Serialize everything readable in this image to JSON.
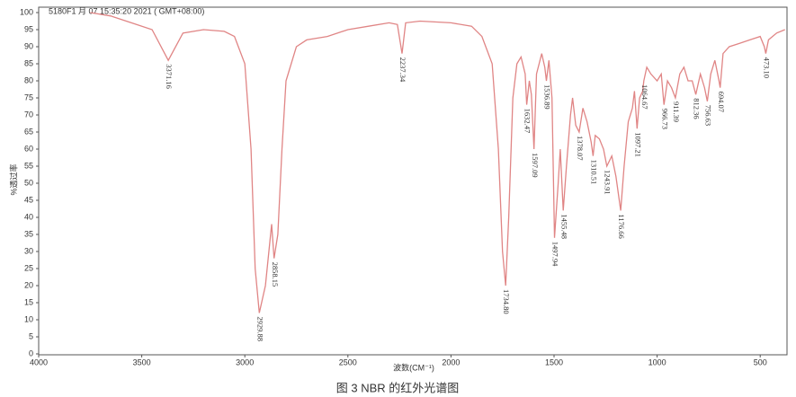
{
  "chart_data": {
    "type": "line",
    "header": "5180F1 月 07 15:35:20 2021 ( GMT+08:00)",
    "ylabel": "%透过率",
    "xlabel": "波数(CM⁻¹)",
    "caption": "图 3  NBR 的红外光谱图",
    "xlim": [
      4000,
      370
    ],
    "ylim": [
      0,
      100
    ],
    "xticks": [
      4000,
      3500,
      3000,
      2500,
      2000,
      1500,
      1000,
      500
    ],
    "yticks": [
      0,
      5,
      10,
      15,
      20,
      25,
      30,
      35,
      40,
      45,
      50,
      55,
      60,
      65,
      70,
      75,
      80,
      85,
      90,
      95,
      100
    ],
    "series": [
      {
        "color": "#e08585",
        "x": [
          3750,
          3650,
          3550,
          3450,
          3371.16,
          3300,
          3200,
          3100,
          3050,
          3000,
          2970,
          2950,
          2929.88,
          2900,
          2880,
          2870,
          2858.15,
          2840,
          2820,
          2800,
          2750,
          2700,
          2600,
          2500,
          2400,
          2300,
          2260,
          2237.34,
          2220,
          2150,
          2000,
          1900,
          1850,
          1800,
          1770,
          1750,
          1734.8,
          1720,
          1700,
          1680,
          1660,
          1640,
          1632.47,
          1620,
          1610,
          1597.09,
          1585,
          1560,
          1545,
          1536.89,
          1525,
          1510,
          1497.94,
          1480,
          1470,
          1455.48,
          1440,
          1420,
          1410,
          1395,
          1378.07,
          1360,
          1340,
          1320,
          1310.51,
          1300,
          1280,
          1260,
          1243.91,
          1220,
          1200,
          1176.66,
          1160,
          1140,
          1120,
          1110,
          1097.21,
          1085,
          1070,
          1064.67,
          1050,
          1030,
          1000,
          980,
          966.73,
          950,
          930,
          911.39,
          890,
          870,
          850,
          830,
          812.36,
          790,
          770,
          756.63,
          740,
          720,
          700,
          694.07,
          680,
          650,
          600,
          550,
          500,
          480,
          473.1,
          460,
          420,
          380
        ],
        "values": [
          100,
          99,
          97,
          95,
          86,
          94,
          95,
          94.5,
          93,
          85,
          60,
          25,
          12,
          20,
          32,
          38,
          28,
          35,
          60,
          80,
          90,
          92,
          93,
          95,
          96,
          97,
          96.5,
          88,
          97,
          97.5,
          97,
          96,
          93,
          85,
          60,
          30,
          20,
          40,
          75,
          85,
          87,
          82,
          73,
          80,
          76,
          60,
          82,
          88,
          84,
          80,
          86,
          75,
          34,
          50,
          60,
          42,
          55,
          70,
          75,
          67,
          65,
          72,
          68,
          62,
          58,
          64,
          63,
          60,
          55,
          58,
          52,
          42,
          55,
          68,
          72,
          77,
          66,
          75,
          77,
          80,
          84,
          82,
          80,
          82,
          73,
          80,
          78,
          75,
          82,
          84,
          80,
          80,
          76,
          82,
          78,
          74,
          82,
          86,
          80,
          78,
          88,
          90,
          91,
          92,
          93,
          90,
          88,
          92,
          94,
          95
        ]
      }
    ],
    "peaks": [
      {
        "label": "3371.16",
        "x": 3371.16,
        "y": 86
      },
      {
        "label": "2929.88",
        "x": 2929.88,
        "y": 12
      },
      {
        "label": "2858.15",
        "x": 2858.15,
        "y": 28
      },
      {
        "label": "2237.34",
        "x": 2237.34,
        "y": 88
      },
      {
        "label": "1734.80",
        "x": 1734.8,
        "y": 20
      },
      {
        "label": "1632.47",
        "x": 1632.47,
        "y": 73
      },
      {
        "label": "1597.09",
        "x": 1597.09,
        "y": 60
      },
      {
        "label": "1536.89",
        "x": 1536.89,
        "y": 80
      },
      {
        "label": "1497.94",
        "x": 1497.94,
        "y": 34
      },
      {
        "label": "1455.48",
        "x": 1455.48,
        "y": 42
      },
      {
        "label": "1378.07",
        "x": 1378.07,
        "y": 65
      },
      {
        "label": "1310.51",
        "x": 1310.51,
        "y": 58
      },
      {
        "label": "1243.91",
        "x": 1243.91,
        "y": 55
      },
      {
        "label": "1176.66",
        "x": 1176.66,
        "y": 42
      },
      {
        "label": "1097.21",
        "x": 1097.21,
        "y": 66
      },
      {
        "label": "1064.67",
        "x": 1064.67,
        "y": 80
      },
      {
        "label": "966.73",
        "x": 966.73,
        "y": 73
      },
      {
        "label": "911.39",
        "x": 911.39,
        "y": 75
      },
      {
        "label": "812.36",
        "x": 812.36,
        "y": 76
      },
      {
        "label": "756.63",
        "x": 756.63,
        "y": 74
      },
      {
        "label": "694.07",
        "x": 694.07,
        "y": 78
      },
      {
        "label": "473.10",
        "x": 473.1,
        "y": 88
      }
    ]
  }
}
